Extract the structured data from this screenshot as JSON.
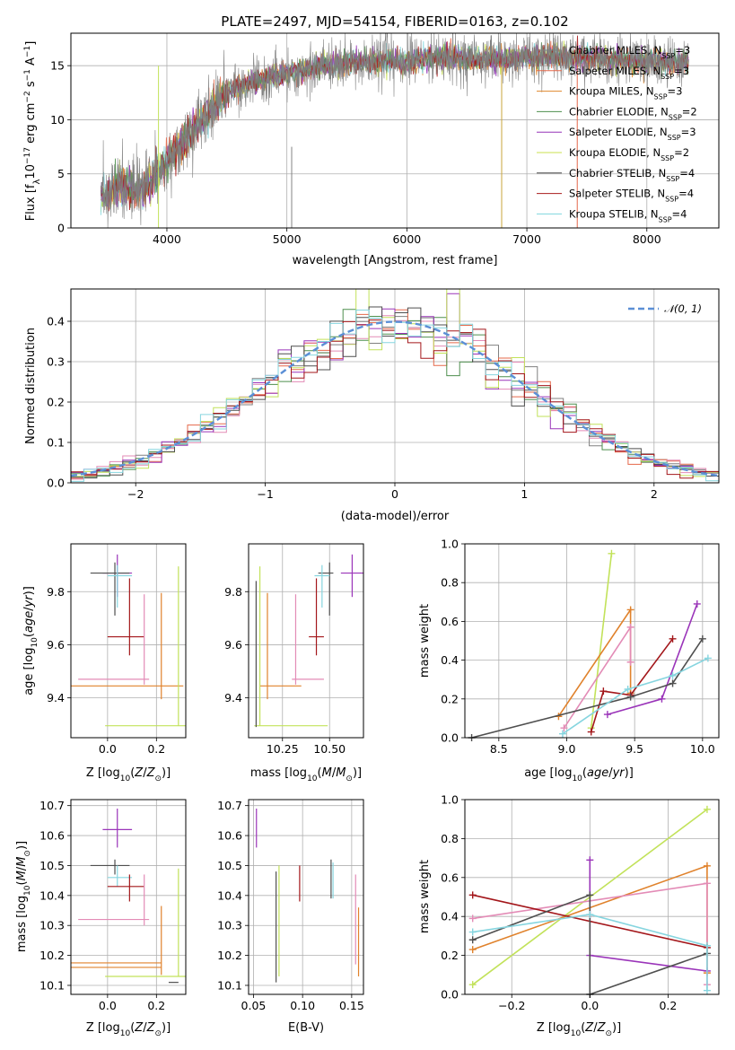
{
  "colors": {
    "c_miles_chabrier": "#808080",
    "c_miles_salpeter": "#e5684a",
    "c_miles_kroupa": "#e0872c",
    "c_elodie_chabrier": "#4e8f4e",
    "c_elodie_salpeter": "#9633b8",
    "c_elodie_kroupa": "#c8e04c",
    "c_stelib_chabrier": "#4d4d4d",
    "c_stelib_salpeter": "#a81c1c",
    "c_stelib_kroupa": "#7fd6dd",
    "pink": "#e38bb6",
    "orange": "#e0822c",
    "lime": "#c2e25a",
    "purple": "#9a34b9",
    "cyan": "#86d5df",
    "darkred": "#a3161a",
    "darkgray": "#4f4f4f",
    "gaussian": "#5b8fd6"
  },
  "chart_data": [
    {
      "type": "line",
      "title": "PLATE=2497, MJD=54154, FIBERID=0163, z=0.102",
      "xlabel": "wavelength [Angstrom, rest frame]",
      "ylabel": "Flux [f_λ10^-17 erg cm^-2 s^-1 A^-1]",
      "xlim": [
        3200,
        8600
      ],
      "ylim": [
        0,
        18
      ],
      "xticks": [
        "4000",
        "5000",
        "6000",
        "7000",
        "8000"
      ],
      "yticks": [
        "0",
        "5",
        "10",
        "15"
      ],
      "legend_position": "right",
      "legend": [
        "Chabrier MILES, N_SSP=3",
        "Salpeter MILES, N_SSP=3",
        "Kroupa MILES, N_SSP=3",
        "Chabrier ELODIE, N_SSP=2",
        "Salpeter ELODIE, N_SSP=3",
        "Kroupa ELODIE, N_SSP=2",
        "Chabrier STELIB, N_SSP=4",
        "Salpeter STELIB, N_SSP=4",
        "Kroupa STELIB, N_SSP=4"
      ],
      "approx_continuum": {
        "x": [
          3450,
          3600,
          3800,
          3950,
          4100,
          4300,
          4500,
          4700,
          4900,
          5100,
          5300,
          5500,
          5800,
          6000,
          6300,
          6600,
          6900,
          7200,
          7500,
          7800,
          8100,
          8350
        ],
        "y": [
          3.0,
          3.8,
          3.5,
          5.5,
          7.5,
          10.0,
          12.5,
          13.5,
          14.0,
          14.5,
          15.0,
          15.2,
          15.5,
          15.3,
          15.8,
          15.6,
          15.7,
          15.9,
          15.7,
          15.5,
          15.3,
          15.2
        ]
      }
    },
    {
      "type": "histogram",
      "xlabel": "(data-model)/error",
      "ylabel": "Normed distribution",
      "xlim": [
        -2.5,
        2.5
      ],
      "ylim": [
        0,
        0.48
      ],
      "xticks": [
        "−2",
        "−1",
        "0",
        "1",
        "2"
      ],
      "yticks": [
        "0.0",
        "0.1",
        "0.2",
        "0.3",
        "0.4"
      ],
      "legend": [
        "𝒩(0, 1)"
      ],
      "bin_width": 0.1
    },
    {
      "type": "scatter",
      "xlabel": "Z [log10(Z/Z⊙)]",
      "ylabel": "age [log10(age/yr)]",
      "xlim": [
        -0.15,
        0.32
      ],
      "ylim": [
        9.25,
        9.98
      ],
      "xticks": [
        "0.0",
        "0.2"
      ],
      "yticks": [
        "9.4",
        "9.6",
        "9.8"
      ],
      "points": [
        {
          "color": "purple",
          "x": 0.04,
          "y": 9.87,
          "xerr": [
            0.06,
            0.06
          ],
          "yerr": [
            0.09,
            0.07
          ]
        },
        {
          "color": "darkgray",
          "x": 0.03,
          "y": 9.87,
          "xerr": [
            0.1,
            0.06
          ],
          "yerr": [
            0.16,
            0.04
          ]
        },
        {
          "color": "cyan",
          "x": 0.04,
          "y": 9.86,
          "xerr": [
            0.04,
            0.06
          ],
          "yerr": [
            0.12,
            0.04
          ]
        },
        {
          "color": "darkred",
          "x": 0.09,
          "y": 9.63,
          "xerr": [
            0.09,
            0.06
          ],
          "yerr": [
            0.07,
            0.22
          ]
        },
        {
          "color": "pink",
          "x": 0.15,
          "y": 9.47,
          "xerr": [
            0.27,
            0.02
          ],
          "yerr": [
            0.02,
            0.32
          ]
        },
        {
          "color": "orange",
          "x": 0.22,
          "y": 9.445,
          "xerr": [
            0.37,
            0.09
          ],
          "yerr": [
            0.05,
            0.35
          ]
        },
        {
          "color": "lime",
          "x": 0.29,
          "y": 9.295,
          "xerr": [
            0.3,
            0.03
          ],
          "yerr": [
            0.0,
            0.6
          ]
        }
      ]
    },
    {
      "type": "scatter",
      "xlabel": "mass [log10(M/M⊙)]",
      "ylabel": "",
      "xlim": [
        10.07,
        10.68
      ],
      "ylim": [
        9.25,
        9.98
      ],
      "xticks": [
        "10.25",
        "10.50"
      ],
      "yticks": [
        "9.4",
        "9.6",
        "9.8"
      ],
      "points": [
        {
          "color": "purple",
          "x": 10.62,
          "y": 9.87,
          "xerr": [
            0.06,
            0.06
          ],
          "yerr": [
            0.09,
            0.07
          ]
        },
        {
          "color": "darkgray",
          "x": 10.5,
          "y": 9.87,
          "xerr": [
            0.06,
            0.02
          ],
          "yerr": [
            0.16,
            0.04
          ]
        },
        {
          "color": "cyan",
          "x": 10.46,
          "y": 9.86,
          "xerr": [
            0.04,
            0.04
          ],
          "yerr": [
            0.12,
            0.04
          ]
        },
        {
          "color": "darkred",
          "x": 10.43,
          "y": 9.63,
          "xerr": [
            0.04,
            0.04
          ],
          "yerr": [
            0.07,
            0.22
          ]
        },
        {
          "color": "pink",
          "x": 10.32,
          "y": 9.47,
          "xerr": [
            0.02,
            0.15
          ],
          "yerr": [
            0.02,
            0.32
          ]
        },
        {
          "color": "orange",
          "x": 10.17,
          "y": 9.445,
          "xerr": [
            0.04,
            0.18
          ],
          "yerr": [
            0.05,
            0.35
          ]
        },
        {
          "color": "lime",
          "x": 10.13,
          "y": 9.295,
          "xerr": [
            0.03,
            0.36
          ],
          "yerr": [
            0.0,
            0.6
          ]
        },
        {
          "color": "darkgray",
          "x": 10.11,
          "y": 9.29,
          "xerr": [
            0.0,
            0.0
          ],
          "yerr": [
            0.0,
            0.55
          ]
        }
      ]
    },
    {
      "type": "line",
      "xlabel": "age [log10(age/yr)]",
      "ylabel": "mass weight",
      "xlim": [
        8.25,
        10.12
      ],
      "ylim": [
        0,
        1
      ],
      "xticks": [
        "8.5",
        "9.0",
        "9.5",
        "10.0"
      ],
      "yticks": [
        "0.0",
        "0.2",
        "0.4",
        "0.6",
        "0.8",
        "1.0"
      ],
      "series": [
        {
          "color": "lime",
          "x": [
            9.18,
            9.33
          ],
          "y": [
            0.05,
            0.95
          ]
        },
        {
          "color": "orange",
          "x": [
            8.94,
            9.47,
            9.47
          ],
          "y": [
            0.11,
            0.66,
            0.23
          ]
        },
        {
          "color": "pink",
          "x": [
            8.98,
            9.47,
            9.47
          ],
          "y": [
            0.05,
            0.57,
            0.39
          ]
        },
        {
          "color": "purple",
          "x": [
            9.3,
            9.7,
            9.96
          ],
          "y": [
            0.12,
            0.2,
            0.69
          ]
        },
        {
          "color": "darkred",
          "x": [
            9.18,
            9.27,
            9.47,
            9.78
          ],
          "y": [
            0.03,
            0.24,
            0.22,
            0.51
          ]
        },
        {
          "color": "darkgray",
          "x": [
            8.3,
            9.47,
            9.78,
            10.0
          ],
          "y": [
            0.0,
            0.21,
            0.28,
            0.51
          ]
        },
        {
          "color": "cyan",
          "x": [
            8.97,
            9.45,
            9.78,
            10.04
          ],
          "y": [
            0.02,
            0.25,
            0.32,
            0.41
          ]
        }
      ]
    },
    {
      "type": "scatter",
      "xlabel": "Z [log10(Z/Z⊙)]",
      "ylabel": "mass [log10(M/M⊙)]",
      "xlim": [
        -0.15,
        0.32
      ],
      "ylim": [
        10.07,
        10.72
      ],
      "xticks": [
        "0.0",
        "0.2"
      ],
      "yticks": [
        "10.1",
        "10.2",
        "10.3",
        "10.4",
        "10.5",
        "10.6",
        "10.7"
      ],
      "points": [
        {
          "color": "purple",
          "x": 0.04,
          "y": 10.62,
          "xerr": [
            0.06,
            0.06
          ],
          "yerr": [
            0.06,
            0.07
          ]
        },
        {
          "color": "darkgray",
          "x": 0.03,
          "y": 10.5,
          "xerr": [
            0.1,
            0.06
          ],
          "yerr": [
            0.03,
            0.02
          ]
        },
        {
          "color": "cyan",
          "x": 0.04,
          "y": 10.46,
          "xerr": [
            0.04,
            0.06
          ],
          "yerr": [
            0.03,
            0.04
          ]
        },
        {
          "color": "darkred",
          "x": 0.09,
          "y": 10.43,
          "xerr": [
            0.09,
            0.06
          ],
          "yerr": [
            0.05,
            0.04
          ]
        },
        {
          "color": "pink",
          "x": 0.15,
          "y": 10.32,
          "xerr": [
            0.27,
            0.02
          ],
          "yerr": [
            0.02,
            0.15
          ]
        },
        {
          "color": "orange",
          "x": 0.22,
          "y": 10.175,
          "xerr": [
            0.37,
            0.0
          ],
          "yerr": [
            0.04,
            0.19
          ]
        },
        {
          "color": "orange",
          "x": 0.22,
          "y": 10.16,
          "xerr": [
            0.37,
            0.0
          ],
          "yerr": [
            0.0,
            0.0
          ]
        },
        {
          "color": "lime",
          "x": 0.29,
          "y": 10.13,
          "xerr": [
            0.3,
            0.03
          ],
          "yerr": [
            0.0,
            0.36
          ]
        },
        {
          "color": "darkgray",
          "x": 0.29,
          "y": 10.11,
          "xerr": [
            0.04,
            0.0
          ],
          "yerr": [
            0.0,
            0.0
          ]
        }
      ]
    },
    {
      "type": "scatter",
      "xlabel": "E(B-V)",
      "ylabel": "",
      "xlim": [
        0.045,
        0.162
      ],
      "ylim": [
        10.07,
        10.72
      ],
      "xticks": [
        "0.05",
        "0.10",
        "0.15"
      ],
      "yticks": [
        "10.1",
        "10.2",
        "10.3",
        "10.4",
        "10.5",
        "10.6",
        "10.7"
      ],
      "points": [
        {
          "color": "purple",
          "x": 0.053,
          "y": 10.62,
          "xerr": [
            0.0,
            0.0
          ],
          "yerr": [
            0.06,
            0.07
          ]
        },
        {
          "color": "darkgray",
          "x": 0.073,
          "y": 10.29,
          "xerr": [
            0.0,
            0.0
          ],
          "yerr": [
            0.18,
            0.19
          ]
        },
        {
          "color": "lime",
          "x": 0.076,
          "y": 10.31,
          "xerr": [
            0.0,
            0.0
          ],
          "yerr": [
            0.18,
            0.19
          ]
        },
        {
          "color": "darkred",
          "x": 0.097,
          "y": 10.44,
          "xerr": [
            0.0,
            0.0
          ],
          "yerr": [
            0.06,
            0.06
          ]
        },
        {
          "color": "darkgray",
          "x": 0.129,
          "y": 10.45,
          "xerr": [
            0.0,
            0.0
          ],
          "yerr": [
            0.06,
            0.07
          ]
        },
        {
          "color": "cyan",
          "x": 0.131,
          "y": 10.45,
          "xerr": [
            0.0,
            0.0
          ],
          "yerr": [
            0.06,
            0.06
          ]
        },
        {
          "color": "pink",
          "x": 0.154,
          "y": 10.32,
          "xerr": [
            0.0,
            0.0
          ],
          "yerr": [
            0.15,
            0.15
          ]
        },
        {
          "color": "orange",
          "x": 0.157,
          "y": 10.24,
          "xerr": [
            0.0,
            0.0
          ],
          "yerr": [
            0.11,
            0.12
          ]
        }
      ]
    },
    {
      "type": "line",
      "xlabel": "Z [log10(Z/Z⊙)]",
      "ylabel": "mass weight",
      "xlim": [
        -0.32,
        0.33
      ],
      "ylim": [
        0,
        1
      ],
      "xticks": [
        "−0.2",
        "0.0",
        "0.2"
      ],
      "yticks": [
        "0.0",
        "0.2",
        "0.4",
        "0.6",
        "0.8",
        "1.0"
      ],
      "series": [
        {
          "color": "lime",
          "x": [
            -0.3,
            0.3
          ],
          "y": [
            0.05,
            0.95
          ]
        },
        {
          "color": "orange",
          "x": [
            -0.3,
            0.3,
            0.3
          ],
          "y": [
            0.23,
            0.66,
            0.11
          ]
        },
        {
          "color": "pink",
          "x": [
            -0.3,
            0.3,
            0.3
          ],
          "y": [
            0.39,
            0.57,
            0.05
          ]
        },
        {
          "color": "purple",
          "x": [
            0.0,
            0.0,
            0.3
          ],
          "y": [
            0.69,
            0.2,
            0.12
          ]
        },
        {
          "color": "darkred",
          "x": [
            -0.3,
            0.3
          ],
          "y": [
            0.51,
            0.24
          ]
        },
        {
          "color": "darkgray",
          "x": [
            -0.3,
            0.0,
            0.0,
            0.3
          ],
          "y": [
            0.28,
            0.51,
            0.0,
            0.21
          ]
        },
        {
          "color": "cyan",
          "x": [
            -0.3,
            0.0,
            0.3,
            0.3
          ],
          "y": [
            0.32,
            0.41,
            0.25,
            0.02
          ]
        }
      ]
    }
  ]
}
